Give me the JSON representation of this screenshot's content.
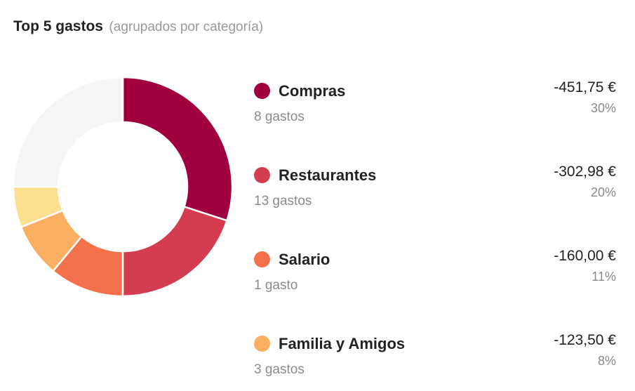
{
  "header": {
    "title": "Top 5 gastos",
    "subtitle": "(agrupados por categoría)"
  },
  "chart_data": {
    "type": "pie",
    "variant": "donut",
    "title": "Top 5 gastos",
    "subtitle": "(agrupados por categoría)",
    "slices": [
      {
        "name": "Compras",
        "value": 30,
        "color": "#a10040"
      },
      {
        "name": "Restaurantes",
        "value": 20,
        "color": "#d43d51"
      },
      {
        "name": "Salario",
        "value": 11,
        "color": "#f2714a"
      },
      {
        "name": "Familia y Amigos",
        "value": 8,
        "color": "#fbaf63"
      },
      {
        "name": "",
        "value": 6,
        "color": "#fde08f"
      },
      {
        "name": "",
        "value": 25,
        "color": "#f6f5f4"
      }
    ]
  },
  "legend": [
    {
      "name": "Compras",
      "count": "8 gastos",
      "amount": "-451,75 €",
      "percent": "30%",
      "color": "#a10040"
    },
    {
      "name": "Restaurantes",
      "count": "13 gastos",
      "amount": "-302,98 €",
      "percent": "20%",
      "color": "#d43d51"
    },
    {
      "name": "Salario",
      "count": "1 gasto",
      "amount": "-160,00 €",
      "percent": "11%",
      "color": "#f2714a"
    },
    {
      "name": "Familia y Amigos",
      "count": "3 gastos",
      "amount": "-123,50 €",
      "percent": "8%",
      "color": "#fbaf63"
    }
  ]
}
